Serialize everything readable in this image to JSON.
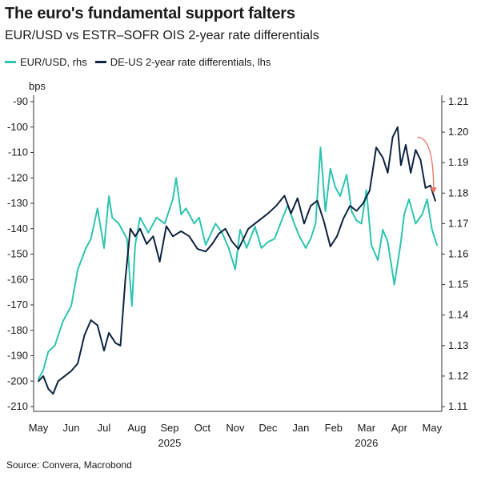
{
  "title": "The euro's fundamental support falters",
  "subtitle": "EUR/USD vs ESTR–SOFR OIS 2-year rate differentials",
  "source": "Source: Convera, Macrobond",
  "colors": {
    "eurusd": "#2ec4b0",
    "diff": "#0f2340",
    "arrow": "#e8796a",
    "axis": "#333333"
  },
  "chart_data": {
    "type": "line",
    "left_axis_unit": "bps",
    "left_ticks": [
      "-90",
      "-100",
      "-110",
      "-120",
      "-130",
      "-140",
      "-150",
      "-160",
      "-170",
      "-180",
      "-190",
      "-200",
      "-210"
    ],
    "left_ylim": [
      -210,
      -90
    ],
    "right_ticks": [
      "1.21",
      "1.20",
      "1.19",
      "1.18",
      "1.17",
      "1.16",
      "1.15",
      "1.14",
      "1.13",
      "1.12",
      "1.11"
    ],
    "right_ylim": [
      1.11,
      1.21
    ],
    "x_ticks": [
      "May",
      "Jun",
      "Jul",
      "Aug",
      "Sep",
      "Oct",
      "Nov",
      "Dec",
      "Jan",
      "Feb",
      "Mar",
      "Apr",
      "May"
    ],
    "year_labels": [
      {
        "label": "2025",
        "month_index": 4
      },
      {
        "label": "2026",
        "month_index": 10
      }
    ],
    "x_range_months": [
      0,
      12.2
    ],
    "series": [
      {
        "name": "EUR/USD, rhs",
        "axis": "right",
        "x": [
          0,
          0.15,
          0.3,
          0.5,
          0.75,
          1.0,
          1.2,
          1.45,
          1.6,
          1.8,
          2.0,
          2.15,
          2.25,
          2.45,
          2.7,
          2.85,
          2.95,
          3.1,
          3.35,
          3.6,
          3.85,
          4.1,
          4.2,
          4.35,
          4.5,
          4.75,
          4.9,
          5.1,
          5.4,
          5.6,
          5.8,
          6.0,
          6.15,
          6.35,
          6.6,
          6.8,
          7.0,
          7.2,
          7.45,
          7.6,
          7.8,
          7.95,
          8.15,
          8.3,
          8.45,
          8.6,
          8.75,
          8.9,
          9.05,
          9.2,
          9.4,
          9.55,
          9.7,
          9.85,
          10.0,
          10.15,
          10.35,
          10.5,
          10.65,
          10.85,
          11.05,
          11.15,
          11.3,
          11.5,
          11.7,
          11.85,
          12.0,
          12.15
        ],
        "values": [
          1.119,
          1.122,
          1.128,
          1.13,
          1.138,
          1.143,
          1.155,
          1.162,
          1.165,
          1.175,
          1.162,
          1.179,
          1.172,
          1.17,
          1.165,
          1.143,
          1.163,
          1.172,
          1.167,
          1.172,
          1.17,
          1.178,
          1.185,
          1.173,
          1.175,
          1.17,
          1.172,
          1.163,
          1.17,
          1.167,
          1.162,
          1.155,
          1.168,
          1.162,
          1.169,
          1.162,
          1.164,
          1.165,
          1.172,
          1.176,
          1.17,
          1.166,
          1.162,
          1.165,
          1.17,
          1.195,
          1.174,
          1.188,
          1.182,
          1.179,
          1.186,
          1.174,
          1.171,
          1.17,
          1.181,
          1.163,
          1.158,
          1.168,
          1.164,
          1.15,
          1.164,
          1.173,
          1.178,
          1.17,
          1.173,
          1.178,
          1.168,
          1.163
        ]
      },
      {
        "name": "DE-US 2-year rate differentials, lhs",
        "axis": "left",
        "x": [
          0,
          0.15,
          0.3,
          0.45,
          0.6,
          0.8,
          1.0,
          1.2,
          1.4,
          1.6,
          1.8,
          2.0,
          2.15,
          2.35,
          2.5,
          2.65,
          2.8,
          2.95,
          3.1,
          3.3,
          3.5,
          3.7,
          3.9,
          4.1,
          4.35,
          4.6,
          4.85,
          5.1,
          5.3,
          5.5,
          5.7,
          5.9,
          6.1,
          6.4,
          6.7,
          7.0,
          7.25,
          7.5,
          7.7,
          7.9,
          8.1,
          8.3,
          8.5,
          8.7,
          8.9,
          9.1,
          9.3,
          9.5,
          9.7,
          9.9,
          10.1,
          10.3,
          10.5,
          10.65,
          10.8,
          10.95,
          11.05,
          11.2,
          11.35,
          11.5,
          11.65,
          11.8,
          11.95,
          12.1
        ],
        "values": [
          -200,
          -198,
          -203,
          -205,
          -200,
          -198,
          -196,
          -193,
          -182,
          -176,
          -178,
          -188,
          -181,
          -185,
          -186,
          -160,
          -140,
          -143,
          -140,
          -146,
          -143,
          -153,
          -139,
          -143,
          -141,
          -143,
          -148,
          -149,
          -146,
          -142,
          -140,
          -145,
          -148,
          -140,
          -137,
          -134,
          -131,
          -127,
          -134,
          -128,
          -138,
          -131,
          -129,
          -137,
          -147,
          -143,
          -136,
          -131,
          -133,
          -130,
          -125,
          -108,
          -112,
          -118,
          -104,
          -100,
          -115,
          -107,
          -118,
          -109,
          -113,
          -124,
          -123,
          -129
        ]
      }
    ],
    "annotation": {
      "type": "arrow",
      "direction": "down"
    }
  }
}
